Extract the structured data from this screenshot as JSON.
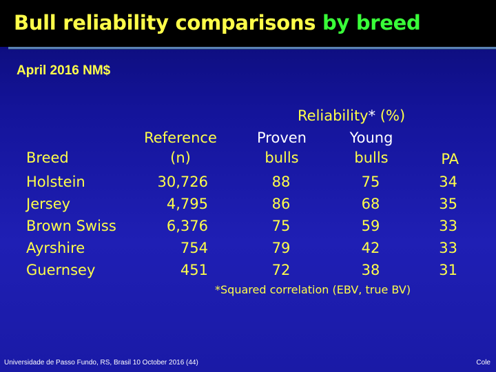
{
  "slide": {
    "title_main": "Bull reliability comparisons",
    "title_highlight": "by breed",
    "subtitle": "April 2016 NM$"
  },
  "table": {
    "reliability_header": "Reliability",
    "reliability_star": "*",
    "reliability_unit": "(%)",
    "headers": {
      "breed": "Breed",
      "reference_line1": "Reference",
      "reference_line2": "(n)",
      "proven_line1": "Proven",
      "proven_line2": "bulls",
      "young_line1": "Young",
      "young_line2": "bulls",
      "pa": "PA"
    },
    "rows": [
      {
        "breed": "Holstein",
        "reference": "30,726",
        "proven": "88",
        "young": "75",
        "pa": "34"
      },
      {
        "breed": "Jersey",
        "reference": "4,795",
        "proven": "86",
        "young": "68",
        "pa": "35"
      },
      {
        "breed": "Brown Swiss",
        "reference": "6,376",
        "proven": "75",
        "young": "59",
        "pa": "33"
      },
      {
        "breed": "Ayrshire",
        "reference": "754",
        "proven": "79",
        "young": "42",
        "pa": "33"
      },
      {
        "breed": "Guernsey",
        "reference": "451",
        "proven": "72",
        "young": "38",
        "pa": "31"
      }
    ]
  },
  "note": "*Squared correlation (EBV, true BV)",
  "footer": {
    "left": "Universidade de Passo Fundo, RS, Brasil 10 October 2016 (44)",
    "right": "Cole"
  },
  "colors": {
    "title_yellow": "#ffff4a",
    "title_green": "#39ff39",
    "background_blue": "#1a1aa6",
    "header_bar": "#000000"
  }
}
